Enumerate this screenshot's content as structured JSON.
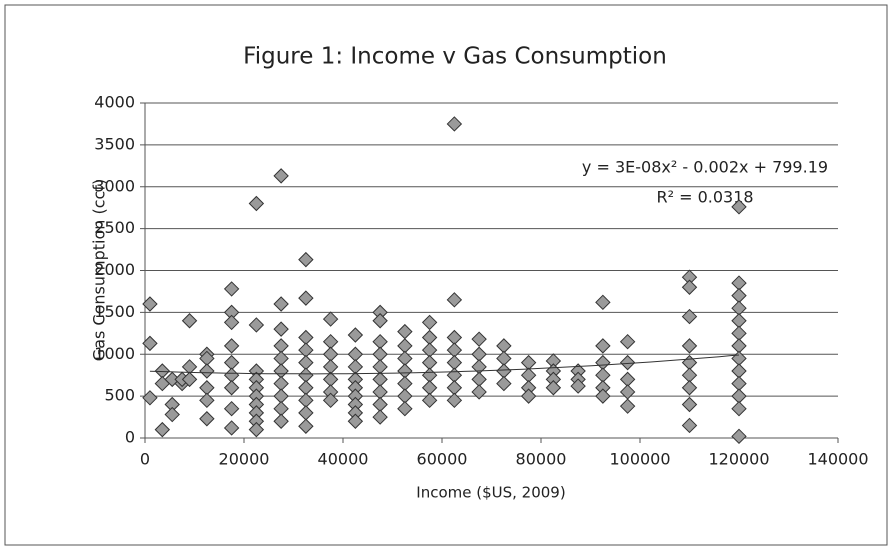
{
  "chart_data": {
    "type": "scatter",
    "title": "Figure 1: Income v Gas Consumption",
    "x_label": "Income ($US, 2009)",
    "y_label": "Gas Consumption (ccf)",
    "xlim": [
      0,
      140000
    ],
    "xticks": [
      0,
      20000,
      40000,
      60000,
      80000,
      100000,
      120000,
      140000
    ],
    "ylim": [
      0,
      4000
    ],
    "yticks": [
      0,
      500,
      1000,
      1500,
      2000,
      2500,
      3000,
      3500,
      4000
    ],
    "grid": true,
    "series": [
      {
        "color": "#9a9a9a",
        "x": [
          1000,
          1000,
          1000,
          3500,
          3500,
          3500,
          5500,
          5500,
          5500,
          7500,
          7500,
          9000,
          9000,
          9000,
          12500,
          12500,
          12500,
          12500,
          12500,
          12500,
          17500,
          17500,
          17500,
          17500,
          17500,
          17500,
          17500,
          17500,
          17500,
          22500,
          22500,
          22500,
          22500,
          22500,
          22500,
          22500,
          22500,
          22500,
          22500,
          27500,
          27500,
          27500,
          27500,
          27500,
          27500,
          27500,
          27500,
          27500,
          27500,
          32500,
          32500,
          32500,
          32500,
          32500,
          32500,
          32500,
          32500,
          32500,
          32500,
          37500,
          37500,
          37500,
          37500,
          37500,
          37500,
          37500,
          42500,
          42500,
          42500,
          42500,
          42500,
          42500,
          42500,
          42500,
          42500,
          47500,
          47500,
          47500,
          47500,
          47500,
          47500,
          47500,
          47500,
          47500,
          52500,
          52500,
          52500,
          52500,
          52500,
          52500,
          52500,
          57500,
          57500,
          57500,
          57500,
          57500,
          57500,
          57500,
          62500,
          62500,
          62500,
          62500,
          62500,
          62500,
          62500,
          62500,
          67500,
          67500,
          67500,
          67500,
          67500,
          72500,
          72500,
          72500,
          72500,
          77500,
          77500,
          77500,
          77500,
          82500,
          82500,
          82500,
          82500,
          87500,
          87500,
          87500,
          92500,
          92500,
          92500,
          92500,
          92500,
          92500,
          97500,
          97500,
          97500,
          97500,
          97500,
          110000,
          110000,
          110000,
          110000,
          110000,
          110000,
          110000,
          110000,
          110000,
          120000,
          120000,
          120000,
          120000,
          120000,
          120000,
          120000,
          120000,
          120000,
          120000,
          120000,
          120000,
          120000
        ],
        "y": [
          1600,
          1130,
          480,
          800,
          100,
          650,
          700,
          400,
          280,
          650,
          700,
          1400,
          850,
          700,
          1000,
          950,
          800,
          600,
          450,
          230,
          1780,
          1500,
          1380,
          1100,
          900,
          750,
          600,
          350,
          120,
          2800,
          1350,
          800,
          700,
          600,
          500,
          400,
          300,
          200,
          100,
          3130,
          1600,
          1300,
          1100,
          950,
          800,
          650,
          500,
          350,
          200,
          2130,
          1670,
          1200,
          1050,
          900,
          750,
          600,
          450,
          300,
          140,
          1420,
          1150,
          1000,
          850,
          700,
          550,
          450,
          1230,
          1000,
          850,
          700,
          600,
          500,
          400,
          300,
          200,
          1500,
          1400,
          1150,
          1000,
          850,
          700,
          550,
          400,
          250,
          1270,
          1100,
          950,
          800,
          650,
          500,
          350,
          1380,
          1200,
          1050,
          900,
          750,
          600,
          450,
          3750,
          1650,
          1200,
          1050,
          900,
          750,
          600,
          450,
          1180,
          1000,
          850,
          700,
          550,
          1100,
          950,
          800,
          650,
          900,
          750,
          600,
          500,
          920,
          800,
          700,
          600,
          800,
          700,
          620,
          1620,
          1100,
          900,
          750,
          600,
          500,
          1150,
          900,
          700,
          550,
          380,
          1920,
          1800,
          1450,
          1100,
          900,
          750,
          600,
          400,
          150,
          2760,
          1850,
          1700,
          1550,
          1400,
          1250,
          1100,
          950,
          800,
          650,
          500,
          350,
          20
        ]
      }
    ],
    "trendline": {
      "label": "y = 3E-08x² - 0.002x + 799.19",
      "r2_label": "R² = 0.0318",
      "coefficients": [
        3e-08,
        -0.002,
        799.19
      ]
    }
  }
}
